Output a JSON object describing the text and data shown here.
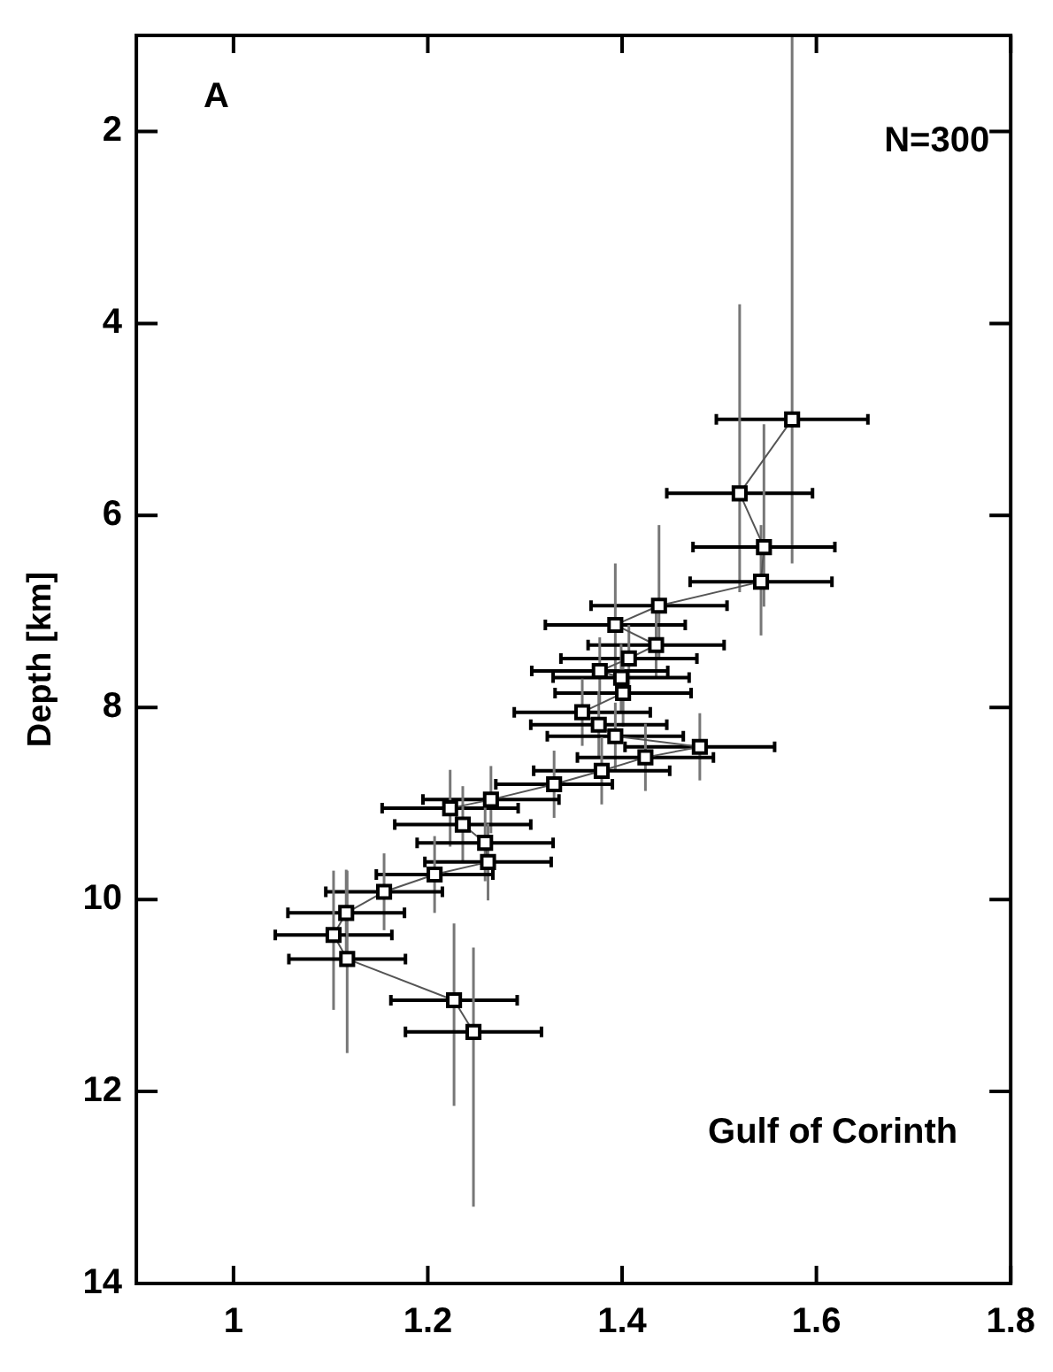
{
  "chart_data": {
    "type": "line",
    "ylabel": "Depth [km]",
    "marker": "square",
    "grid": false,
    "legend": false,
    "annotations": [
      "A",
      "N=300",
      "Gulf of Corinth"
    ],
    "xlim": [
      0.9,
      1.8
    ],
    "xticks": [
      1,
      1.2,
      1.4,
      1.6,
      1.8
    ],
    "ylim": [
      14,
      1
    ],
    "yticks": [
      2,
      4,
      6,
      8,
      10,
      12,
      14
    ],
    "series": [
      {
        "color": "#000000",
        "x": [
          1.575,
          1.521,
          1.546,
          1.543,
          1.438,
          1.393,
          1.435,
          1.407,
          1.377,
          1.399,
          1.401,
          1.359,
          1.376,
          1.393,
          1.48,
          1.424,
          1.379,
          1.33,
          1.265,
          1.223,
          1.236,
          1.259,
          1.262,
          1.207,
          1.155,
          1.116,
          1.103,
          1.117,
          1.227,
          1.247
        ],
        "values": [
          5.0,
          5.77,
          6.33,
          6.69,
          6.94,
          7.14,
          7.35,
          7.49,
          7.62,
          7.69,
          7.85,
          8.05,
          8.18,
          8.3,
          8.41,
          8.52,
          8.66,
          8.8,
          8.96,
          9.05,
          9.22,
          9.41,
          9.61,
          9.74,
          9.92,
          10.14,
          10.37,
          10.62,
          11.05,
          11.38
        ],
        "xerrors": [
          0.078,
          0.075,
          0.073,
          0.073,
          0.07,
          0.072,
          0.07,
          0.07,
          0.07,
          0.07,
          0.07,
          0.07,
          0.07,
          0.07,
          0.077,
          0.07,
          0.07,
          0.06,
          0.07,
          0.07,
          0.07,
          0.07,
          0.065,
          0.06,
          0.06,
          0.06,
          0.06,
          0.06,
          0.065,
          0.07
        ],
        "errors": [
          [
            1.0,
            6.5
          ],
          [
            3.8,
            6.8
          ],
          [
            5.05,
            6.95
          ],
          [
            6.1,
            7.25
          ],
          [
            6.1,
            7.5
          ],
          [
            6.5,
            7.7
          ],
          0.35,
          0.35,
          0.35,
          0.35,
          0.35,
          0.35,
          0.35,
          0.35,
          0.35,
          0.35,
          0.35,
          0.35,
          0.35,
          0.4,
          0.4,
          0.4,
          0.4,
          0.4,
          0.4,
          0.45,
          [
            9.7,
            11.15
          ],
          [
            9.7,
            11.6
          ],
          [
            10.25,
            12.15
          ],
          [
            10.5,
            13.2
          ]
        ]
      }
    ]
  }
}
